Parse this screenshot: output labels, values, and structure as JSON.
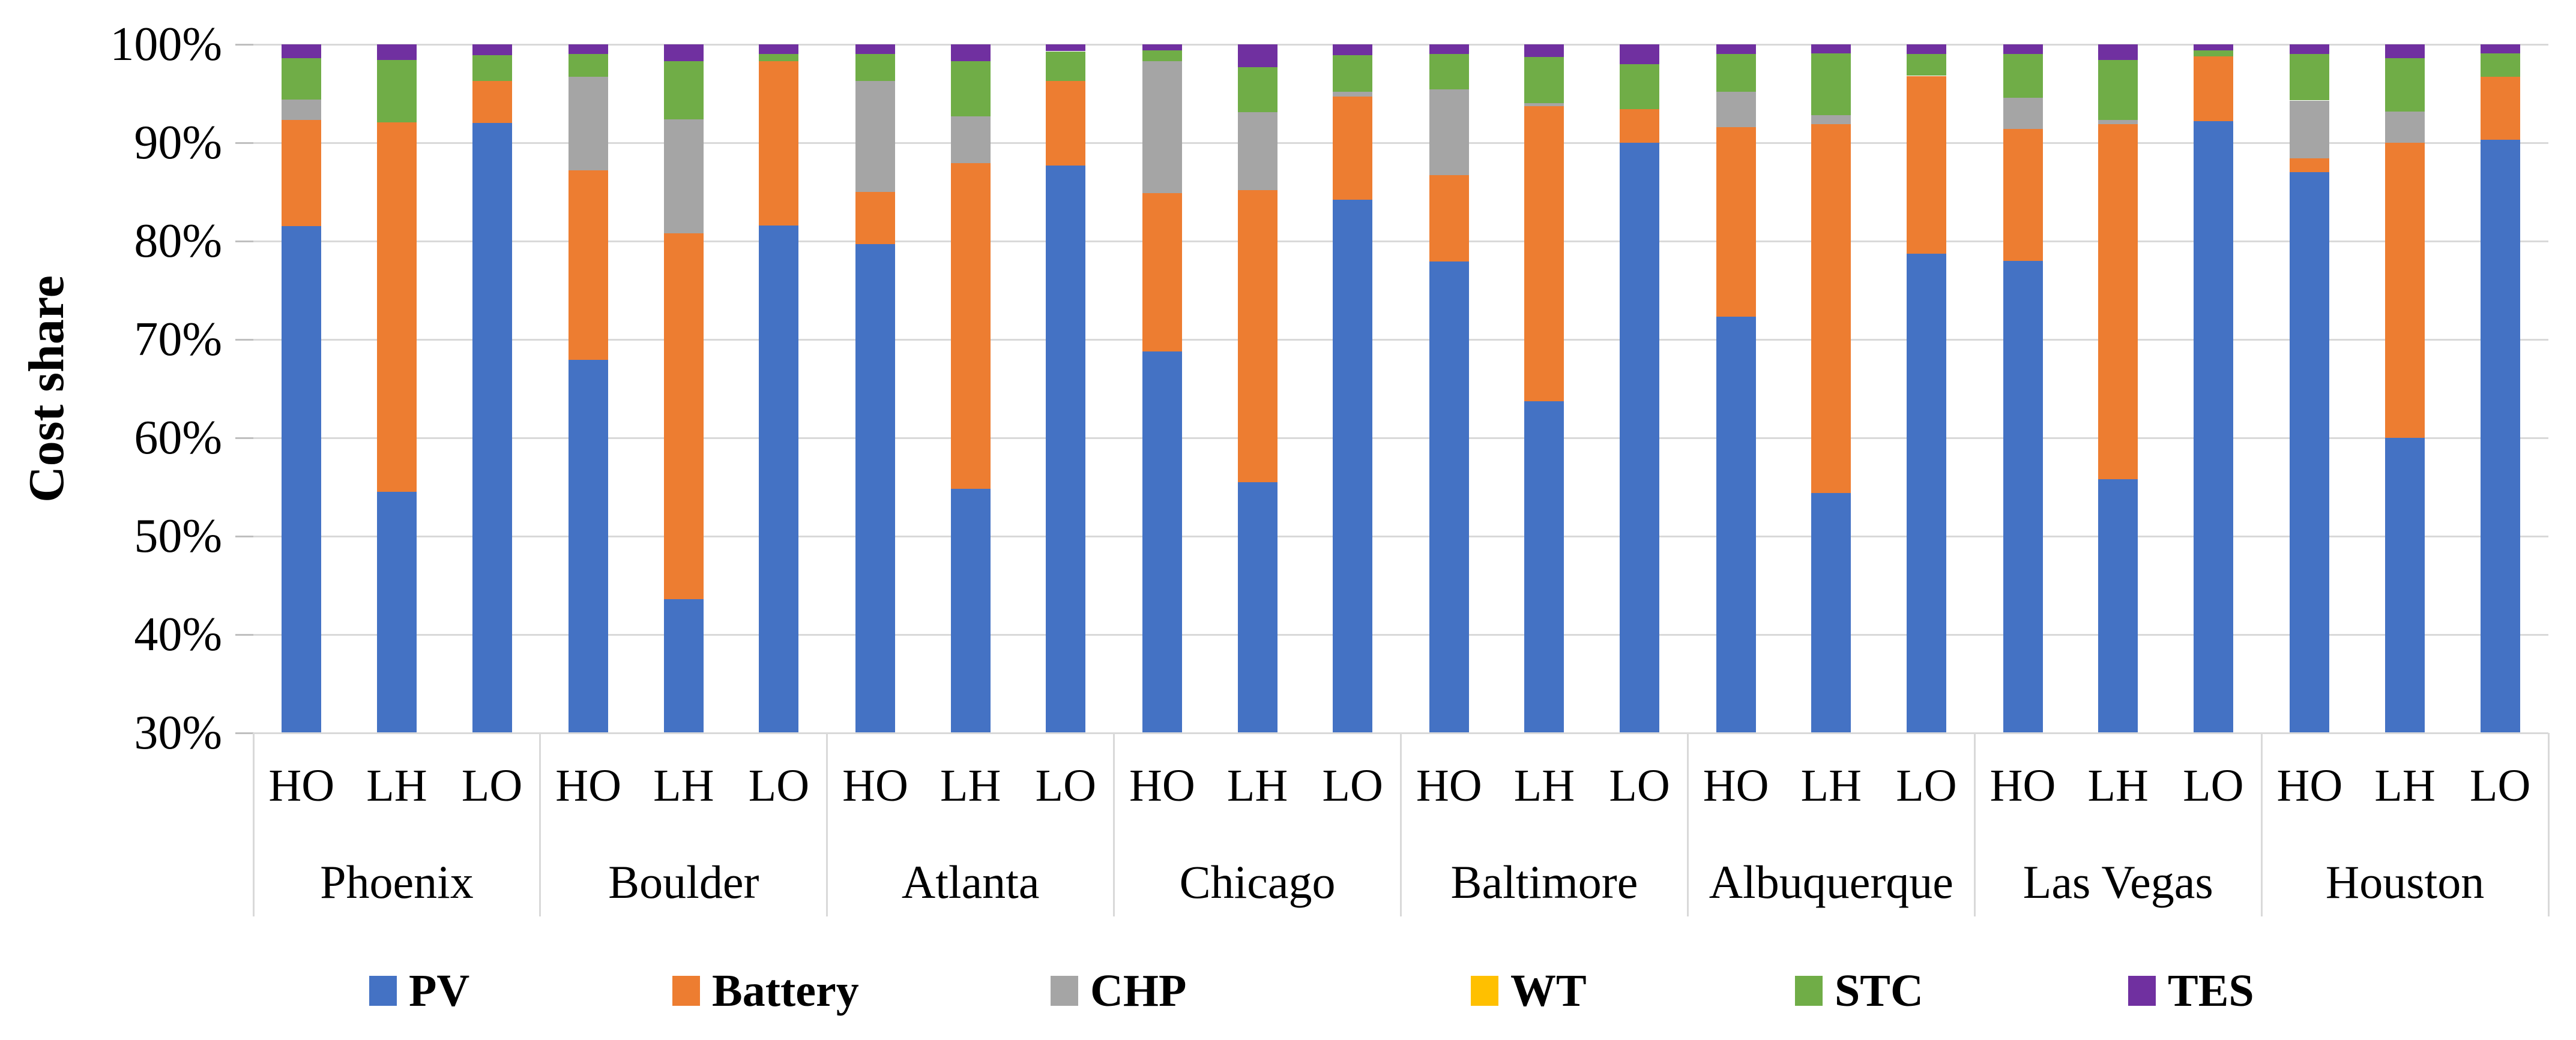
{
  "chart_data": {
    "type": "bar",
    "stacked": true,
    "stack_total": 100,
    "title": "",
    "xlabel": "",
    "ylabel": "Cost share",
    "ylim": [
      30,
      100
    ],
    "grid": true,
    "legend_position": "bottom",
    "y_ticks": [
      {
        "label": "100%",
        "value": 100
      },
      {
        "label": "90%",
        "value": 90
      },
      {
        "label": "80%",
        "value": 80
      },
      {
        "label": "70%",
        "value": 70
      },
      {
        "label": "60%",
        "value": 60
      },
      {
        "label": "50%",
        "value": 50
      },
      {
        "label": "40%",
        "value": 40
      },
      {
        "label": "30%",
        "value": 30
      }
    ],
    "groups": [
      "Phoenix",
      "Boulder",
      "Atlanta",
      "Chicago",
      "Baltimore",
      "Albuquerque",
      "Las Vegas",
      "Houston"
    ],
    "scenarios": [
      "HO",
      "LH",
      "LO"
    ],
    "series": [
      {
        "name": "PV",
        "color": "#4472C4",
        "values": [
          81.5,
          54.5,
          92.0,
          67.9,
          43.6,
          81.6,
          79.7,
          54.8,
          87.7,
          68.8,
          55.5,
          84.2,
          77.9,
          63.7,
          90.0,
          72.3,
          54.4,
          78.7,
          78.0,
          55.8,
          92.2,
          87.0,
          60.0,
          90.3
        ]
      },
      {
        "name": "Battery",
        "color": "#ED7D31",
        "values": [
          10.8,
          37.6,
          4.3,
          19.3,
          37.2,
          16.7,
          5.3,
          33.1,
          8.6,
          16.1,
          29.7,
          10.5,
          8.8,
          30.0,
          3.4,
          19.3,
          37.5,
          18.1,
          13.4,
          36.1,
          6.6,
          1.4,
          30.0,
          6.4
        ]
      },
      {
        "name": "CHP",
        "color": "#A5A5A5",
        "values": [
          2.1,
          0,
          0,
          9.5,
          11.6,
          0,
          11.3,
          4.8,
          0,
          13.4,
          7.9,
          0.5,
          8.7,
          0.3,
          0,
          3.6,
          0.9,
          0,
          3.2,
          0.4,
          0,
          5.9,
          3.2,
          0
        ]
      },
      {
        "name": "WT",
        "color": "#FFC000",
        "values": [
          0,
          0,
          0,
          0,
          0,
          0,
          0,
          0,
          0,
          0,
          0,
          0,
          0,
          0,
          0,
          0,
          0,
          0,
          0,
          0,
          0,
          0,
          0,
          0
        ]
      },
      {
        "name": "STC",
        "color": "#70AD47",
        "values": [
          4.2,
          6.3,
          2.6,
          2.3,
          5.9,
          0.7,
          2.7,
          5.6,
          3.0,
          1.1,
          4.6,
          3.7,
          3.6,
          4.7,
          4.6,
          3.8,
          6.3,
          2.2,
          4.4,
          6.1,
          0.6,
          4.7,
          5.4,
          2.4
        ]
      },
      {
        "name": "TES",
        "color": "#7030A0",
        "values": [
          1.4,
          1.6,
          1.1,
          1.0,
          1.7,
          1.0,
          1.0,
          1.7,
          0.7,
          0.6,
          2.3,
          1.1,
          1.0,
          1.3,
          2.0,
          1.0,
          0.9,
          1.0,
          1.0,
          1.6,
          0.6,
          1.0,
          1.4,
          0.9
        ]
      }
    ],
    "colors": {
      "gridline": "#d9d9d9",
      "tick": "#bfbfbf",
      "text": "#000000"
    }
  }
}
